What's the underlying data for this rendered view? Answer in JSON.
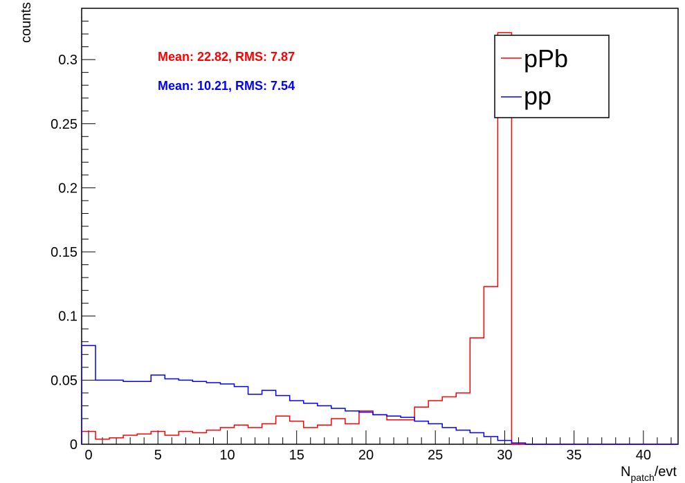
{
  "chart_data": {
    "type": "line",
    "title": "",
    "xlabel": {
      "base": "N",
      "sub": "patch",
      "suffix": "/evt"
    },
    "ylabel": "counts",
    "xlim": [
      -0.5,
      42.5
    ],
    "ylim": [
      0,
      0.34
    ],
    "x_ticks": [
      0,
      5,
      10,
      15,
      20,
      25,
      30,
      35,
      40
    ],
    "y_ticks": [
      0,
      0.05,
      0.1,
      0.15,
      0.2,
      0.25,
      0.3
    ],
    "x_tick_labels": [
      "0",
      "5",
      "10",
      "15",
      "20",
      "25",
      "30",
      "35",
      "40"
    ],
    "y_tick_labels": [
      "0",
      "0.05",
      "0.1",
      "0.15",
      "0.2",
      "0.25",
      "0.3"
    ],
    "grid": false,
    "legend_position": "top-right",
    "bin_width": 1,
    "bin_start": -0.5,
    "series": [
      {
        "name": "pPb",
        "color": "#ff0000",
        "stats": "Mean: 22.82, RMS: 7.87",
        "values": [
          0.01,
          0.004,
          0.005,
          0.007,
          0.008,
          0.01,
          0.007,
          0.01,
          0.009,
          0.011,
          0.013,
          0.015,
          0.013,
          0.016,
          0.022,
          0.018,
          0.013,
          0.015,
          0.02,
          0.016,
          0.026,
          0.023,
          0.019,
          0.019,
          0.029,
          0.034,
          0.037,
          0.04,
          0.083,
          0.123,
          0.321,
          0,
          0,
          0,
          0,
          0,
          0,
          0,
          0,
          0,
          0,
          0,
          0
        ]
      },
      {
        "name": "pp",
        "color": "#0000ff",
        "stats": "Mean: 10.21, RMS: 7.54",
        "values": [
          0.077,
          0.05,
          0.05,
          0.049,
          0.049,
          0.054,
          0.051,
          0.05,
          0.049,
          0.048,
          0.047,
          0.045,
          0.039,
          0.042,
          0.038,
          0.034,
          0.032,
          0.03,
          0.028,
          0.026,
          0.025,
          0.023,
          0.022,
          0.021,
          0.018,
          0.016,
          0.013,
          0.011,
          0.009,
          0.006,
          0.003,
          0.001,
          0,
          0,
          0,
          0,
          0,
          0,
          0,
          0,
          0,
          0,
          0
        ]
      }
    ]
  }
}
